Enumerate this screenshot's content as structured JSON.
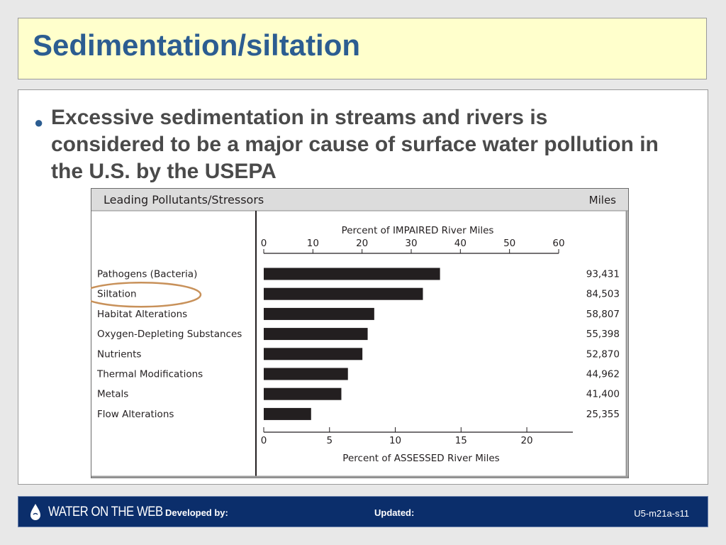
{
  "slide": {
    "title": "Sedimentation/siltation",
    "bullet": "Excessive sedimentation in streams and rivers is considered to be a major cause of surface water pollution in the U.S. by the USEPA"
  },
  "chart_data": {
    "type": "bar",
    "orientation": "horizontal",
    "title": "Leading Pollutants/Stressors",
    "right_header": "Miles",
    "top_axis": {
      "label": "Percent of IMPAIRED River Miles",
      "range": [
        0,
        60
      ],
      "ticks": [
        "0",
        "10",
        "20",
        "30",
        "40",
        "50",
        "60"
      ]
    },
    "bottom_axis": {
      "label": "Percent of ASSESSED River Miles",
      "range": [
        0,
        23.5
      ],
      "ticks": [
        "0",
        "5",
        "10",
        "15",
        "20"
      ]
    },
    "categories": [
      "Pathogens (Bacteria)",
      "Siltation",
      "Habitat Alterations",
      "Oxygen-Depleting Substances",
      "Nutrients",
      "Thermal Modifications",
      "Metals",
      "Flow Alterations"
    ],
    "values": [
      13.4,
      12.1,
      8.4,
      7.9,
      7.5,
      6.4,
      5.9,
      3.6
    ],
    "miles": [
      "93,431",
      "84,503",
      "58,807",
      "55,398",
      "52,870",
      "44,962",
      "41,400",
      "25,355"
    ],
    "highlighted": "Siltation",
    "bar_color": "#231f20",
    "highlight_color": "#c8915a"
  },
  "footer": {
    "logo": "WATER ON THE WEB",
    "developed": "Developed by:",
    "updated": "Updated:",
    "slide_id": "U5-m21a-s11"
  }
}
